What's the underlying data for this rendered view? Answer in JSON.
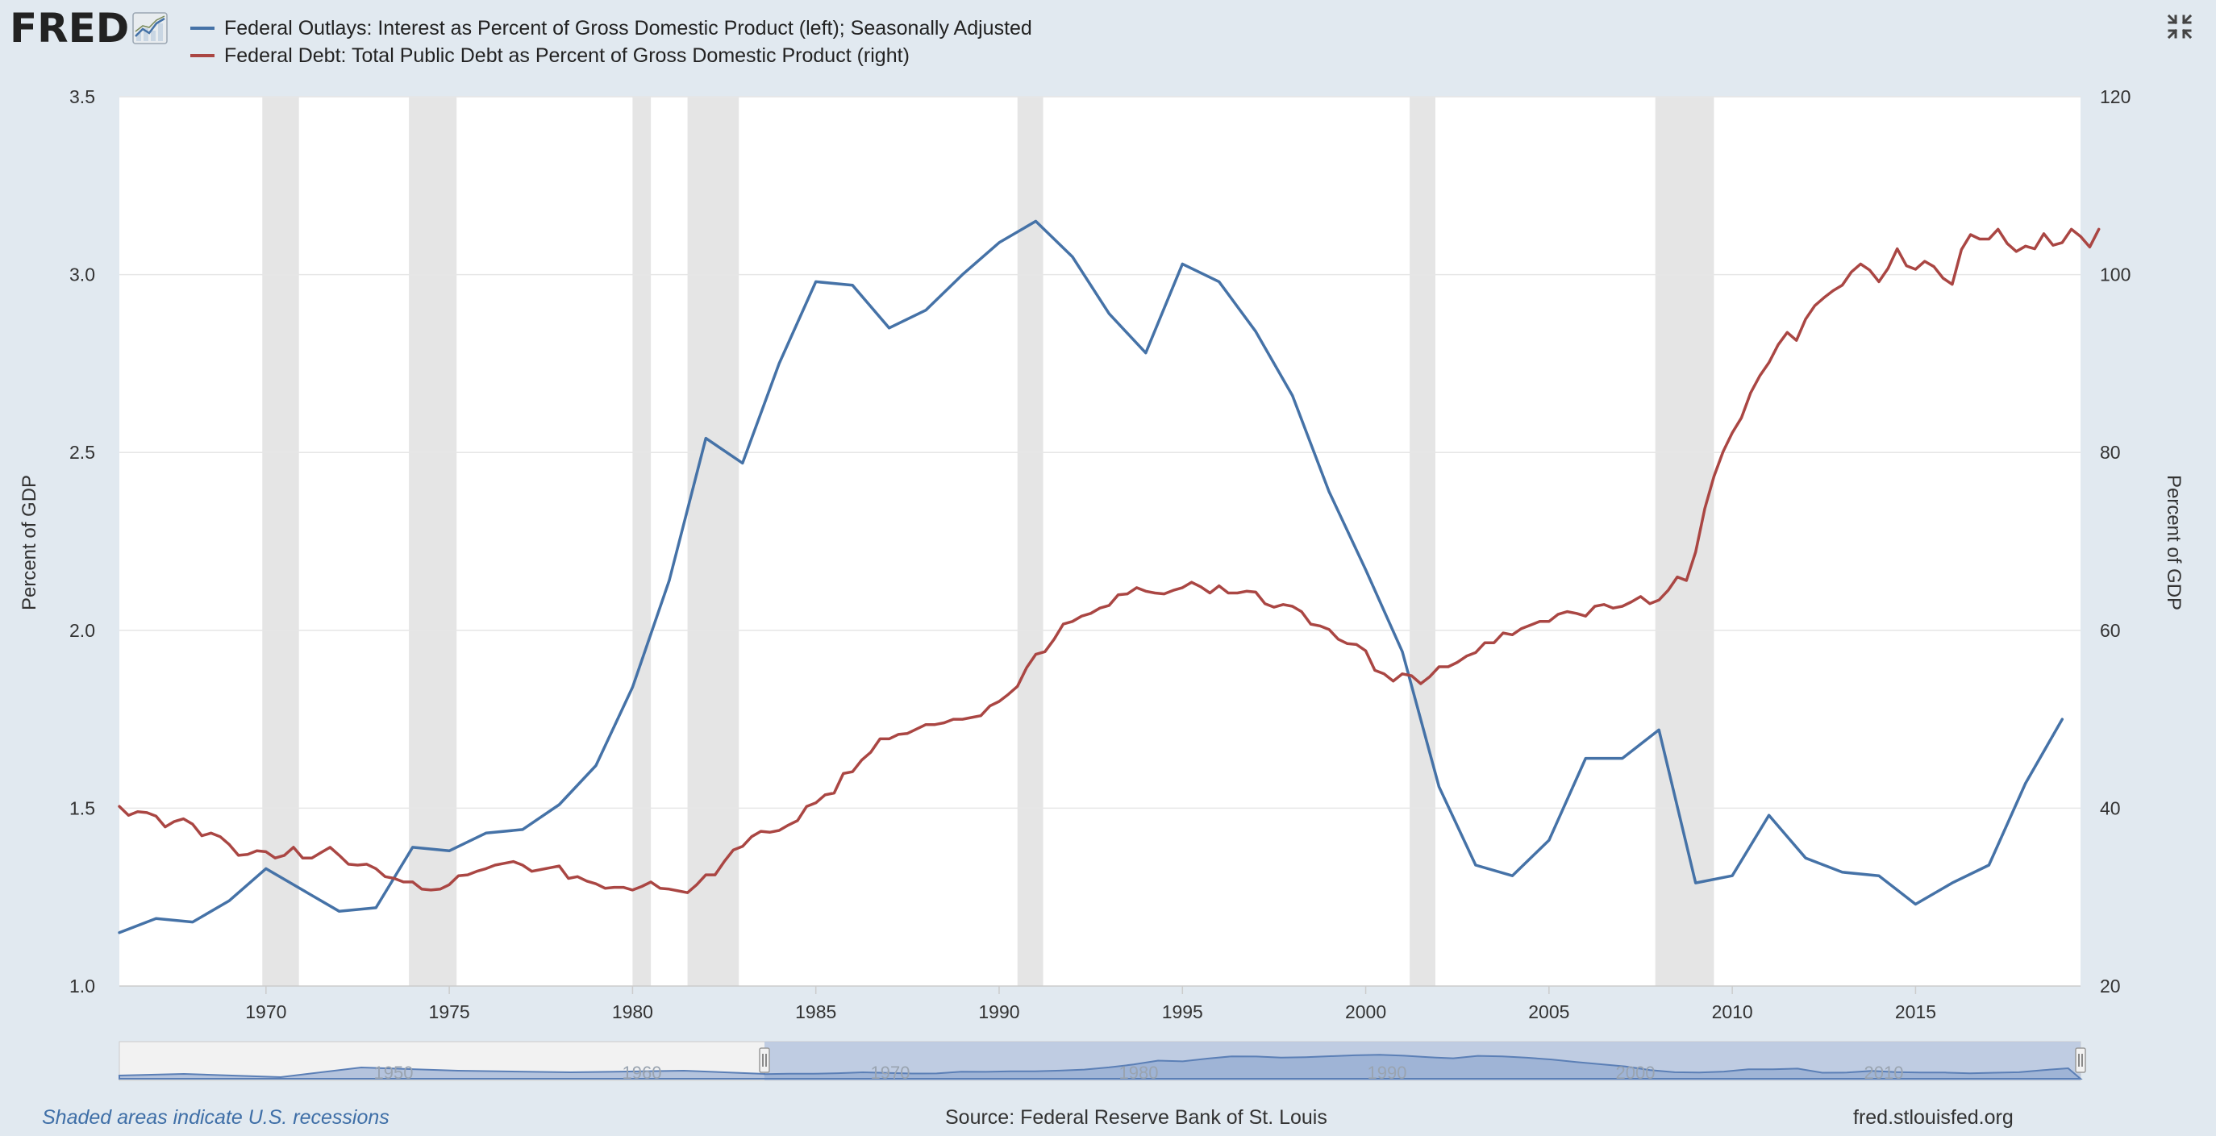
{
  "header": {
    "logo_text": "FRED",
    "logo_icon": "fred-chart-mark-icon",
    "collapse_icon": "collapse-arrows-icon"
  },
  "legend": [
    {
      "label": "Federal Outlays: Interest as Percent of Gross Domestic Product (left); Seasonally Adjusted",
      "color": "#4572a7"
    },
    {
      "label": "Federal Debt: Total Public Debt as Percent of Gross Domestic Product (right)",
      "color": "#aa4643"
    }
  ],
  "footer": {
    "recession_note": "Shaded areas indicate U.S. recessions",
    "source": "Source: Federal Reserve Bank of St. Louis",
    "site": "fred.stlouisfed.org"
  },
  "navigator": {
    "labels": [
      "1950",
      "1960",
      "1970",
      "1980",
      "1990",
      "2000",
      "2010"
    ]
  },
  "chart_data": {
    "type": "line",
    "x_range": [
      1966.0,
      2019.5
    ],
    "left_axis": {
      "label": "Percent of GDP",
      "ylim": [
        1.0,
        3.5
      ],
      "ticks": [
        "1.0",
        "1.5",
        "2.0",
        "2.5",
        "3.0",
        "3.5"
      ]
    },
    "right_axis": {
      "label": "Percent of GDP",
      "ylim": [
        20,
        120
      ],
      "ticks": [
        "20",
        "40",
        "60",
        "80",
        "100",
        "120"
      ]
    },
    "x_ticks": [
      "1970",
      "1975",
      "1980",
      "1985",
      "1990",
      "1995",
      "2000",
      "2005",
      "2010",
      "2015"
    ],
    "recessions": [
      [
        1969.9,
        1970.9
      ],
      [
        1973.9,
        1975.2
      ],
      [
        1980.0,
        1980.5
      ],
      [
        1981.5,
        1982.9
      ],
      [
        1990.5,
        1991.2
      ],
      [
        2001.2,
        2001.9
      ],
      [
        2007.9,
        2009.5
      ]
    ],
    "grid": true,
    "series": [
      {
        "name": "Federal Outlays: Interest as Percent of Gross Domestic Product (left); Seasonally Adjusted",
        "axis": "left",
        "color": "#4572a7",
        "points": [
          [
            1966,
            1.15
          ],
          [
            1967,
            1.19
          ],
          [
            1968,
            1.18
          ],
          [
            1969,
            1.24
          ],
          [
            1970,
            1.33
          ],
          [
            1971,
            1.27
          ],
          [
            1972,
            1.21
          ],
          [
            1973,
            1.22
          ],
          [
            1974,
            1.39
          ],
          [
            1975,
            1.38
          ],
          [
            1976,
            1.43
          ],
          [
            1977,
            1.44
          ],
          [
            1978,
            1.51
          ],
          [
            1979,
            1.62
          ],
          [
            1980,
            1.84
          ],
          [
            1981,
            2.14
          ],
          [
            1982,
            2.54
          ],
          [
            1983,
            2.47
          ],
          [
            1984,
            2.75
          ],
          [
            1985,
            2.98
          ],
          [
            1986,
            2.97
          ],
          [
            1987,
            2.85
          ],
          [
            1988,
            2.9
          ],
          [
            1989,
            3.0
          ],
          [
            1990,
            3.09
          ],
          [
            1991,
            3.15
          ],
          [
            1992,
            3.05
          ],
          [
            1993,
            2.89
          ],
          [
            1994,
            2.78
          ],
          [
            1995,
            3.03
          ],
          [
            1996,
            2.98
          ],
          [
            1997,
            2.84
          ],
          [
            1998,
            2.66
          ],
          [
            1999,
            2.39
          ],
          [
            2000,
            2.17
          ],
          [
            2001,
            1.94
          ],
          [
            2002,
            1.56
          ],
          [
            2003,
            1.34
          ],
          [
            2004,
            1.31
          ],
          [
            2005,
            1.41
          ],
          [
            2006,
            1.64
          ],
          [
            2007,
            1.64
          ],
          [
            2008,
            1.72
          ],
          [
            2009,
            1.29
          ],
          [
            2010,
            1.31
          ],
          [
            2011,
            1.48
          ],
          [
            2012,
            1.36
          ],
          [
            2013,
            1.32
          ],
          [
            2014,
            1.31
          ],
          [
            2015,
            1.23
          ],
          [
            2016,
            1.29
          ],
          [
            2017,
            1.34
          ],
          [
            2018,
            1.57
          ],
          [
            2019,
            1.75
          ]
        ]
      },
      {
        "name": "Federal Debt: Total Public Debt as Percent of Gross Domestic Product (right)",
        "axis": "right",
        "color": "#aa4643",
        "points": [
          [
            1966.0,
            40.2
          ],
          [
            1966.25,
            39.2
          ],
          [
            1966.5,
            39.6
          ],
          [
            1966.75,
            39.5
          ],
          [
            1967.0,
            39.1
          ],
          [
            1967.25,
            37.9
          ],
          [
            1967.5,
            38.5
          ],
          [
            1967.75,
            38.8
          ],
          [
            1968.0,
            38.2
          ],
          [
            1968.25,
            36.9
          ],
          [
            1968.5,
            37.2
          ],
          [
            1968.75,
            36.8
          ],
          [
            1969.0,
            35.9
          ],
          [
            1969.25,
            34.7
          ],
          [
            1969.5,
            34.8
          ],
          [
            1969.75,
            35.2
          ],
          [
            1970.0,
            35.1
          ],
          [
            1970.25,
            34.4
          ],
          [
            1970.5,
            34.7
          ],
          [
            1970.75,
            35.6
          ],
          [
            1971.0,
            34.4
          ],
          [
            1971.25,
            34.4
          ],
          [
            1971.5,
            35.0
          ],
          [
            1971.75,
            35.6
          ],
          [
            1972.0,
            34.7
          ],
          [
            1972.25,
            33.7
          ],
          [
            1972.5,
            33.6
          ],
          [
            1972.75,
            33.7
          ],
          [
            1973.0,
            33.2
          ],
          [
            1973.25,
            32.3
          ],
          [
            1973.5,
            32.1
          ],
          [
            1973.75,
            31.7
          ],
          [
            1974.0,
            31.7
          ],
          [
            1974.25,
            30.9
          ],
          [
            1974.5,
            30.8
          ],
          [
            1974.75,
            30.9
          ],
          [
            1975.0,
            31.4
          ],
          [
            1975.25,
            32.4
          ],
          [
            1975.5,
            32.5
          ],
          [
            1975.75,
            32.9
          ],
          [
            1976.0,
            33.2
          ],
          [
            1976.25,
            33.6
          ],
          [
            1976.5,
            33.8
          ],
          [
            1976.75,
            34.0
          ],
          [
            1977.0,
            33.6
          ],
          [
            1977.25,
            32.9
          ],
          [
            1977.5,
            33.1
          ],
          [
            1977.75,
            33.3
          ],
          [
            1978.0,
            33.5
          ],
          [
            1978.25,
            32.1
          ],
          [
            1978.5,
            32.3
          ],
          [
            1978.75,
            31.8
          ],
          [
            1979.0,
            31.5
          ],
          [
            1979.25,
            31.0
          ],
          [
            1979.5,
            31.1
          ],
          [
            1979.75,
            31.1
          ],
          [
            1980.0,
            30.8
          ],
          [
            1980.25,
            31.2
          ],
          [
            1980.5,
            31.7
          ],
          [
            1980.75,
            31.0
          ],
          [
            1981.0,
            30.9
          ],
          [
            1981.25,
            30.7
          ],
          [
            1981.5,
            30.5
          ],
          [
            1981.75,
            31.4
          ],
          [
            1982.0,
            32.5
          ],
          [
            1982.25,
            32.5
          ],
          [
            1982.5,
            34.0
          ],
          [
            1982.75,
            35.3
          ],
          [
            1983.0,
            35.7
          ],
          [
            1983.25,
            36.8
          ],
          [
            1983.5,
            37.4
          ],
          [
            1983.75,
            37.3
          ],
          [
            1984.0,
            37.5
          ],
          [
            1984.25,
            38.1
          ],
          [
            1984.5,
            38.6
          ],
          [
            1984.75,
            40.2
          ],
          [
            1985.0,
            40.6
          ],
          [
            1985.25,
            41.5
          ],
          [
            1985.5,
            41.7
          ],
          [
            1985.75,
            43.9
          ],
          [
            1986.0,
            44.1
          ],
          [
            1986.25,
            45.4
          ],
          [
            1986.5,
            46.3
          ],
          [
            1986.75,
            47.8
          ],
          [
            1987.0,
            47.8
          ],
          [
            1987.25,
            48.3
          ],
          [
            1987.5,
            48.4
          ],
          [
            1987.75,
            48.9
          ],
          [
            1988.0,
            49.4
          ],
          [
            1988.25,
            49.4
          ],
          [
            1988.5,
            49.6
          ],
          [
            1988.75,
            50.0
          ],
          [
            1989.0,
            50.0
          ],
          [
            1989.25,
            50.2
          ],
          [
            1989.5,
            50.4
          ],
          [
            1989.75,
            51.5
          ],
          [
            1990.0,
            52.0
          ],
          [
            1990.25,
            52.8
          ],
          [
            1990.5,
            53.7
          ],
          [
            1990.75,
            55.8
          ],
          [
            1991.0,
            57.3
          ],
          [
            1991.25,
            57.6
          ],
          [
            1991.5,
            59.0
          ],
          [
            1991.75,
            60.7
          ],
          [
            1992.0,
            61.0
          ],
          [
            1992.25,
            61.6
          ],
          [
            1992.5,
            61.9
          ],
          [
            1992.75,
            62.5
          ],
          [
            1993.0,
            62.8
          ],
          [
            1993.25,
            64.0
          ],
          [
            1993.5,
            64.1
          ],
          [
            1993.75,
            64.8
          ],
          [
            1994.0,
            64.4
          ],
          [
            1994.25,
            64.2
          ],
          [
            1994.5,
            64.1
          ],
          [
            1994.75,
            64.5
          ],
          [
            1995.0,
            64.8
          ],
          [
            1995.25,
            65.4
          ],
          [
            1995.5,
            64.9
          ],
          [
            1995.75,
            64.2
          ],
          [
            1996.0,
            65.0
          ],
          [
            1996.25,
            64.2
          ],
          [
            1996.5,
            64.2
          ],
          [
            1996.75,
            64.4
          ],
          [
            1997.0,
            64.3
          ],
          [
            1997.25,
            63.0
          ],
          [
            1997.5,
            62.6
          ],
          [
            1997.75,
            62.9
          ],
          [
            1998.0,
            62.7
          ],
          [
            1998.25,
            62.1
          ],
          [
            1998.5,
            60.7
          ],
          [
            1998.75,
            60.5
          ],
          [
            1999.0,
            60.1
          ],
          [
            1999.25,
            59.0
          ],
          [
            1999.5,
            58.5
          ],
          [
            1999.75,
            58.4
          ],
          [
            2000.0,
            57.7
          ],
          [
            2000.25,
            55.5
          ],
          [
            2000.5,
            55.1
          ],
          [
            2000.75,
            54.3
          ],
          [
            2001.0,
            55.1
          ],
          [
            2001.25,
            54.9
          ],
          [
            2001.5,
            54.0
          ],
          [
            2001.75,
            54.8
          ],
          [
            2002.0,
            55.9
          ],
          [
            2002.25,
            55.9
          ],
          [
            2002.5,
            56.4
          ],
          [
            2002.75,
            57.1
          ],
          [
            2003.0,
            57.5
          ],
          [
            2003.25,
            58.6
          ],
          [
            2003.5,
            58.6
          ],
          [
            2003.75,
            59.7
          ],
          [
            2004.0,
            59.5
          ],
          [
            2004.25,
            60.2
          ],
          [
            2004.5,
            60.6
          ],
          [
            2004.75,
            61.0
          ],
          [
            2005.0,
            61.0
          ],
          [
            2005.25,
            61.8
          ],
          [
            2005.5,
            62.1
          ],
          [
            2005.75,
            61.9
          ],
          [
            2006.0,
            61.6
          ],
          [
            2006.25,
            62.7
          ],
          [
            2006.5,
            62.9
          ],
          [
            2006.75,
            62.5
          ],
          [
            2007.0,
            62.7
          ],
          [
            2007.25,
            63.2
          ],
          [
            2007.5,
            63.8
          ],
          [
            2007.75,
            63.0
          ],
          [
            2008.0,
            63.4
          ],
          [
            2008.25,
            64.5
          ],
          [
            2008.5,
            66.0
          ],
          [
            2008.75,
            65.6
          ],
          [
            2009.0,
            68.8
          ],
          [
            2009.25,
            73.7
          ],
          [
            2009.5,
            77.3
          ],
          [
            2009.75,
            80.1
          ],
          [
            2010.0,
            82.2
          ],
          [
            2010.25,
            83.9
          ],
          [
            2010.5,
            86.7
          ],
          [
            2010.75,
            88.6
          ],
          [
            2011.0,
            90.1
          ],
          [
            2011.25,
            92.1
          ],
          [
            2011.5,
            93.5
          ],
          [
            2011.75,
            92.6
          ],
          [
            2012.0,
            95.0
          ],
          [
            2012.25,
            96.5
          ],
          [
            2012.5,
            97.4
          ],
          [
            2012.75,
            98.2
          ],
          [
            2013.0,
            98.8
          ],
          [
            2013.25,
            100.3
          ],
          [
            2013.5,
            101.2
          ],
          [
            2013.75,
            100.5
          ],
          [
            2014.0,
            99.2
          ],
          [
            2014.25,
            100.7
          ],
          [
            2014.5,
            102.9
          ],
          [
            2014.75,
            101.0
          ],
          [
            2015.0,
            100.6
          ],
          [
            2015.25,
            101.5
          ],
          [
            2015.5,
            100.9
          ],
          [
            2015.75,
            99.6
          ],
          [
            2016.0,
            98.9
          ],
          [
            2016.25,
            102.8
          ],
          [
            2016.5,
            104.5
          ],
          [
            2016.75,
            104.0
          ],
          [
            2017.0,
            104.0
          ],
          [
            2017.25,
            105.1
          ],
          [
            2017.5,
            103.5
          ],
          [
            2017.75,
            102.6
          ],
          [
            2018.0,
            103.2
          ],
          [
            2018.25,
            102.9
          ],
          [
            2018.5,
            104.6
          ],
          [
            2018.75,
            103.3
          ],
          [
            2019.0,
            103.6
          ],
          [
            2019.25,
            105.1
          ],
          [
            2019.5,
            104.3
          ],
          [
            2019.75,
            103.1
          ],
          [
            2020.0,
            105.1
          ]
        ]
      }
    ]
  }
}
